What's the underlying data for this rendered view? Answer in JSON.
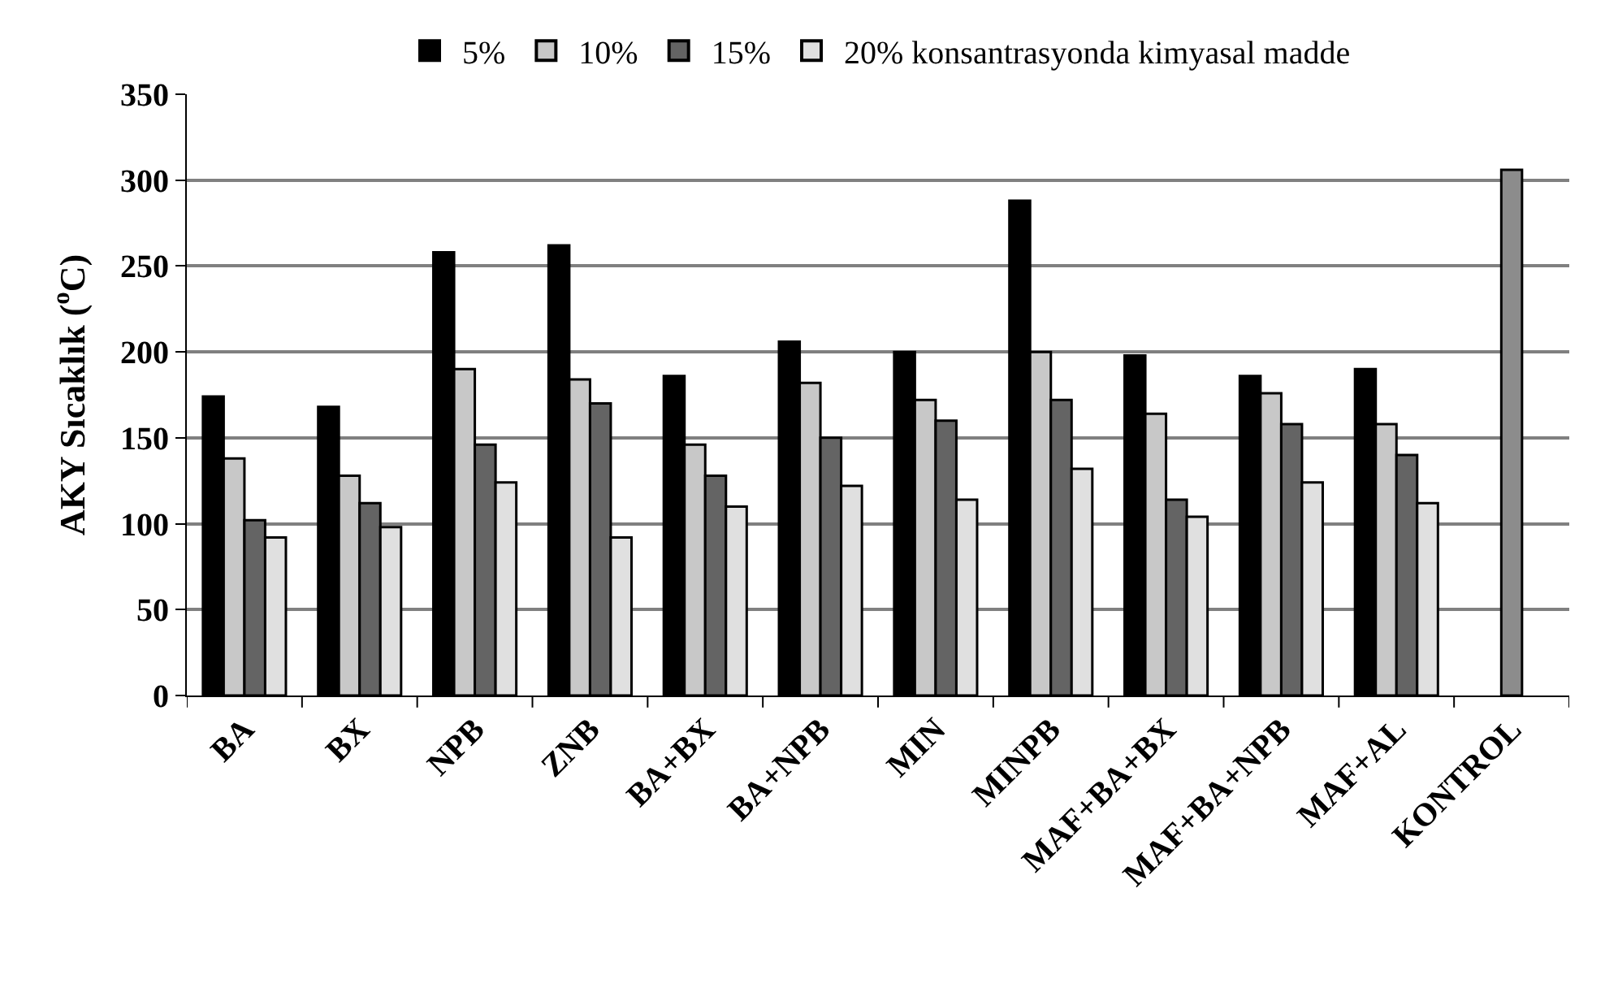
{
  "chart_data": {
    "type": "bar",
    "ylabel": "AKY Sıcaklık ($^{o}$C)",
    "categories": [
      "BA",
      "BX",
      "NPB",
      "ZNB",
      "BA+BX",
      "BA+NPB",
      "MIN",
      "MINPB",
      "MAF+BA+BX",
      "MAF+BA+NPB",
      "MAF+AL",
      "KONTROL"
    ],
    "series": [
      {
        "name": "5%",
        "color": "#000000",
        "values": [
          174,
          168,
          258,
          262,
          186,
          206,
          200,
          288,
          198,
          186,
          190,
          null
        ]
      },
      {
        "name": "10%",
        "color": "#c8c8c8",
        "values": [
          138,
          128,
          190,
          184,
          146,
          182,
          172,
          200,
          164,
          176,
          158,
          null
        ]
      },
      {
        "name": "15%",
        "color": "#646464",
        "values": [
          102,
          112,
          146,
          170,
          128,
          150,
          160,
          172,
          114,
          158,
          140,
          null
        ]
      },
      {
        "name": "20% konsantrasyonda kimyasal madde",
        "color": "#e0e0e0",
        "values": [
          92,
          98,
          124,
          92,
          110,
          122,
          114,
          132,
          104,
          124,
          112,
          null
        ]
      },
      {
        "color": "#8c8c8c",
        "values": [
          null,
          null,
          null,
          null,
          null,
          null,
          null,
          null,
          null,
          null,
          null,
          306
        ]
      }
    ],
    "ylim": [
      0,
      350
    ],
    "yticks": [
      0,
      50,
      100,
      150,
      200,
      250,
      300,
      350
    ],
    "grid": "y",
    "legend": "top"
  }
}
